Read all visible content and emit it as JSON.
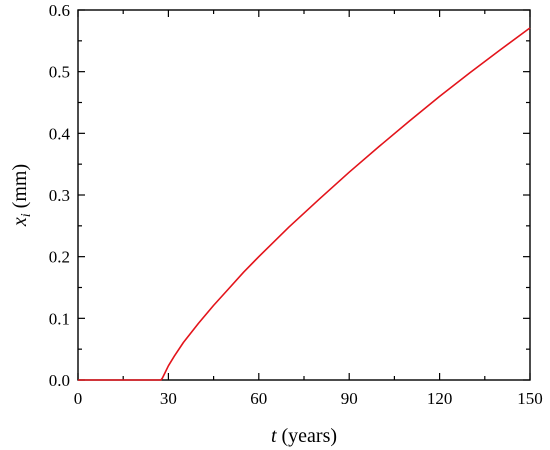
{
  "chart_data": {
    "type": "line",
    "title": "",
    "xlabel": {
      "var": "t",
      "unit": " (years)"
    },
    "ylabel": {
      "var": "x",
      "sub": "i",
      "unit": " (mm)"
    },
    "xlim": [
      0,
      150
    ],
    "ylim": [
      0.0,
      0.6
    ],
    "xticks": [
      0,
      30,
      60,
      90,
      120,
      150
    ],
    "xtick_labels": [
      "0",
      "30",
      "60",
      "90",
      "120",
      "150"
    ],
    "yticks": [
      0.0,
      0.1,
      0.2,
      0.3,
      0.4,
      0.5,
      0.6
    ],
    "ytick_labels": [
      "0.0",
      "0.1",
      "0.2",
      "0.3",
      "0.4",
      "0.5",
      "0.6"
    ],
    "grid": false,
    "legend": "none",
    "series": [
      {
        "color": "#e3141b",
        "x": [
          0,
          10,
          20,
          27.5,
          28,
          29,
          30,
          32,
          35,
          40,
          45,
          50,
          55,
          60,
          70,
          80,
          90,
          100,
          110,
          120,
          130,
          140,
          150
        ],
        "y": [
          0,
          0,
          0,
          0,
          0.003,
          0.013,
          0.023,
          0.039,
          0.061,
          0.092,
          0.121,
          0.148,
          0.175,
          0.2,
          0.248,
          0.293,
          0.337,
          0.379,
          0.42,
          0.46,
          0.498,
          0.535,
          0.571
        ]
      }
    ]
  }
}
